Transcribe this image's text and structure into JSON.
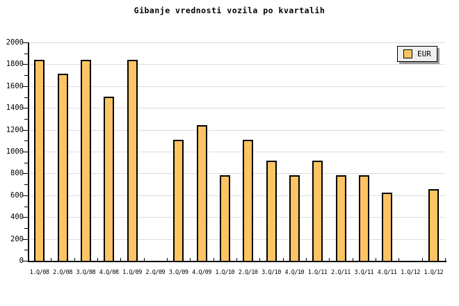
{
  "title": "Gibanje vrednosti vozila po kvartalih",
  "legend": {
    "label": "EUR"
  },
  "colors": {
    "bar_fill": "#fdc463",
    "bar_border": "#000000",
    "gridline": "#dcdcdc",
    "axis": "#000000",
    "legend_bg": "#efefef",
    "legend_shadow": "#9a9a9a",
    "background": "#ffffff"
  },
  "chart_data": {
    "type": "bar",
    "title": "Gibanje vrednosti vozila po kvartalih",
    "xlabel": "",
    "ylabel": "",
    "categories": [
      "1.Q/08",
      "2.Q/08",
      "3.Q/08",
      "4.Q/08",
      "1.Q/09",
      "2.Q/09",
      "3.Q/09",
      "4.Q/09",
      "1.Q/10",
      "2.Q/10",
      "3.Q/10",
      "4.Q/10",
      "1.Q/11",
      "2.Q/11",
      "3.Q/11",
      "4.Q/11",
      "1.Q/12",
      "1.Q/12"
    ],
    "series": [
      {
        "name": "EUR",
        "values": [
          1840,
          1715,
          1840,
          1505,
          1840,
          null,
          1110,
          1245,
          785,
          1110,
          915,
          785,
          915,
          785,
          785,
          625,
          null,
          655
        ]
      }
    ],
    "ylim": [
      0,
      2000
    ],
    "ytick_step": 200,
    "yminor_step": 100,
    "grid": true,
    "legend_position": "top-right"
  }
}
